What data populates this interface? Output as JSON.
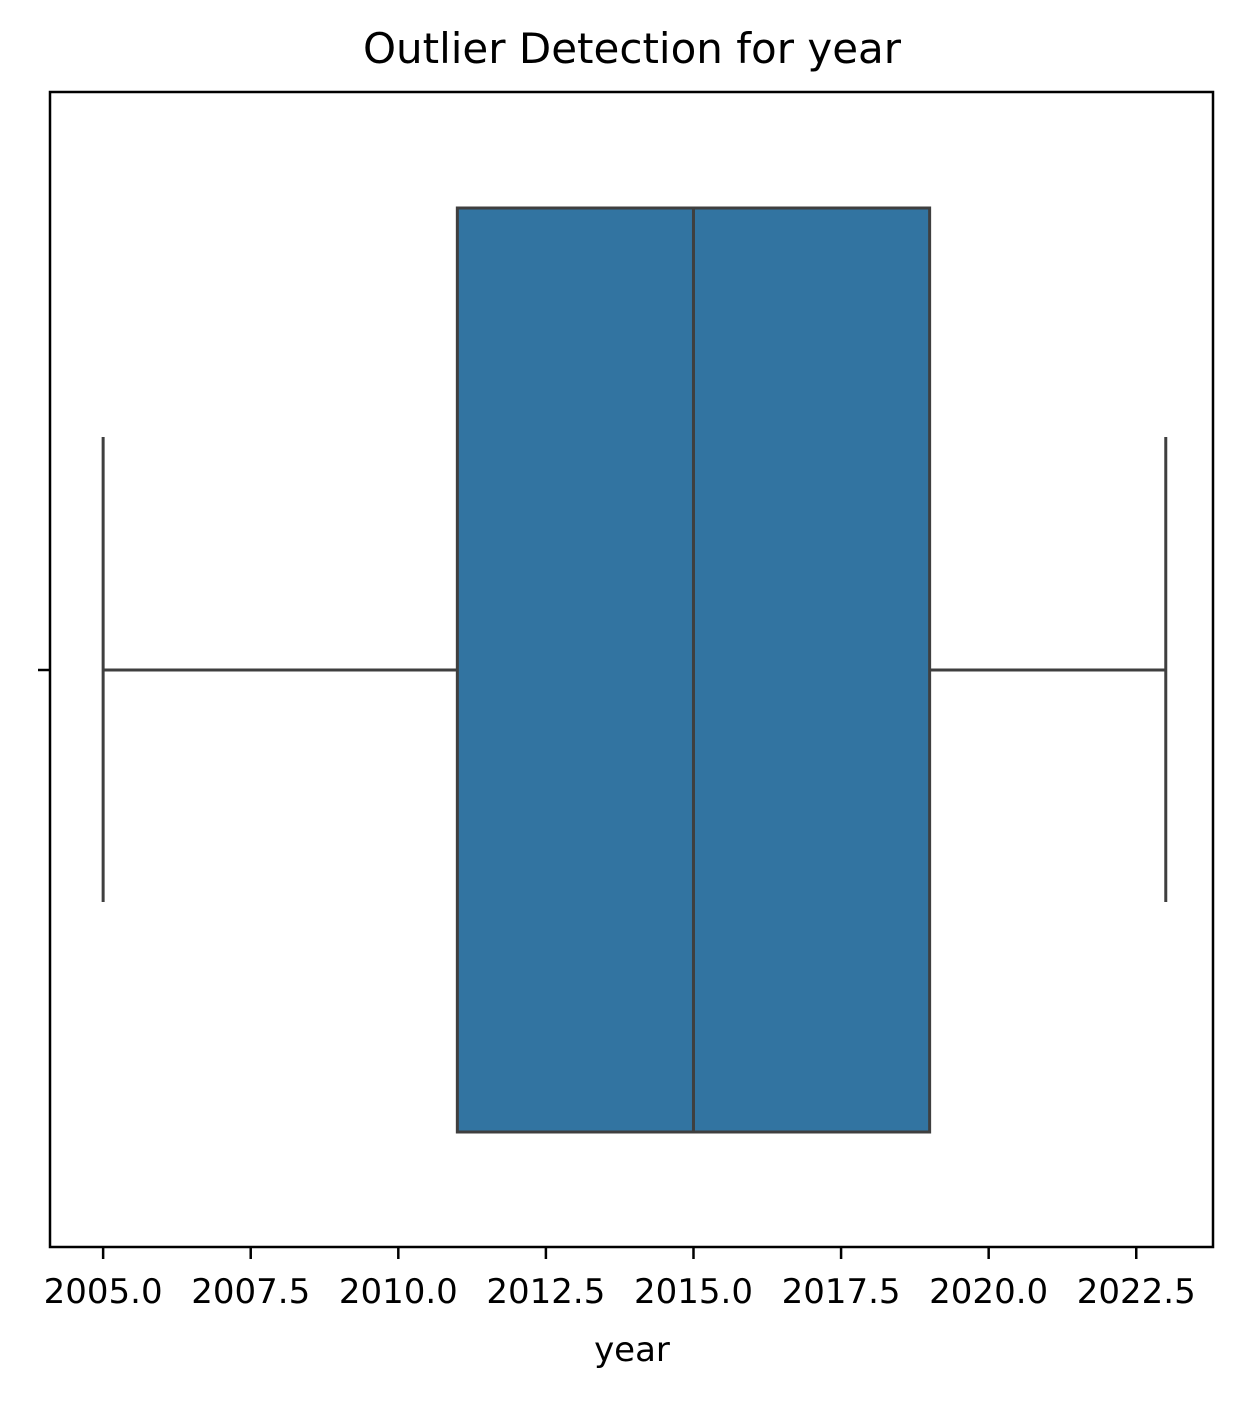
{
  "chart_data": {
    "type": "box",
    "title": "Outlier Detection for year",
    "xlabel": "year",
    "ylabel": "",
    "orientation": "horizontal",
    "xlim": [
      2004.1,
      2023.8
    ],
    "xticks": [
      2005.0,
      2007.5,
      2010.0,
      2012.5,
      2015.0,
      2017.5,
      2020.0,
      2022.5
    ],
    "xtick_labels": [
      "2005.0",
      "2007.5",
      "2010.0",
      "2012.5",
      "2015.0",
      "2017.5",
      "2020.0",
      "2022.5"
    ],
    "yticks": [
      ""
    ],
    "grid": false,
    "box": {
      "whisker_low": 2005.0,
      "q1": 2011.0,
      "median": 2015.0,
      "q3": 2019.0,
      "whisker_high": 2023.0,
      "outliers": []
    },
    "colors": {
      "box_fill": "#3274a1",
      "line": "#3f3f3f",
      "axes": "#000000"
    }
  }
}
